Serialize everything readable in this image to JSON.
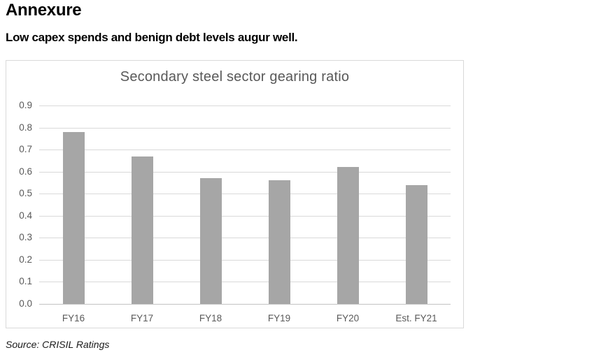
{
  "page": {
    "heading": "Annexure",
    "subtitle": "Low capex spends and benign debt levels augur well.",
    "source": "Source: CRISIL Ratings"
  },
  "chart_data": {
    "type": "bar",
    "title": "Secondary steel sector gearing ratio",
    "categories": [
      "FY16",
      "FY17",
      "FY18",
      "FY19",
      "FY20",
      "Est. FY21"
    ],
    "values": [
      0.78,
      0.67,
      0.57,
      0.56,
      0.62,
      0.54
    ],
    "xlabel": "",
    "ylabel": "",
    "ylim": [
      0,
      0.9
    ],
    "ytick_step": 0.1,
    "ytick_labels": [
      "0.0",
      "0.1",
      "0.2",
      "0.3",
      "0.4",
      "0.5",
      "0.6",
      "0.7",
      "0.8",
      "0.9"
    ],
    "grid": true,
    "legend": false,
    "bar_color": "#a6a6a6",
    "gridline_color": "#d9d9d9",
    "axis_line_color": "#c3c3c3",
    "axis_label_color": "#595959",
    "title_color": "#595959",
    "border_color": "#d9d9d9"
  }
}
